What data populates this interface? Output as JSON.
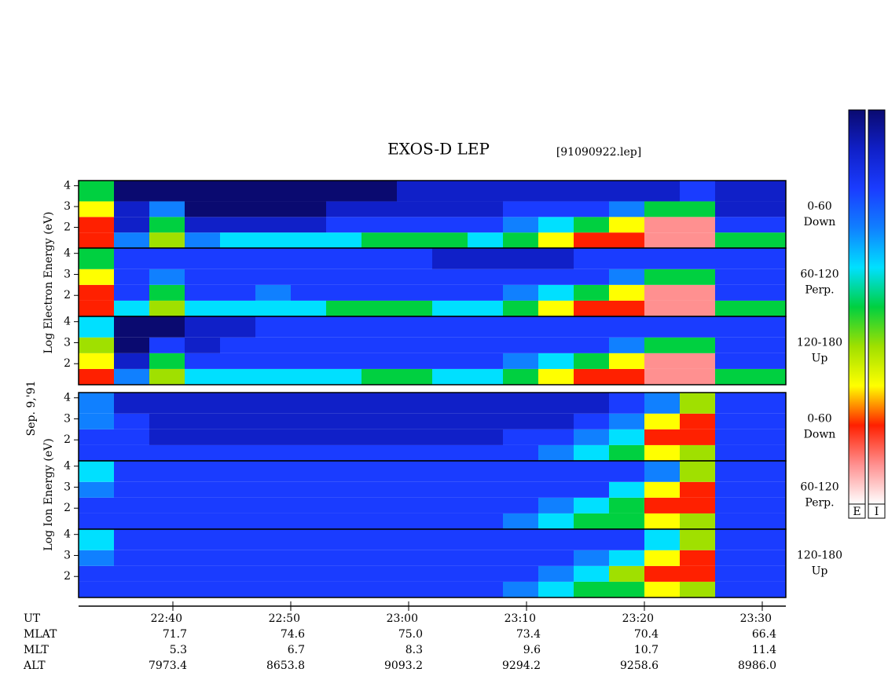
{
  "chart_data": {
    "type": "heatmap",
    "title": "EXOS-D LEP",
    "subtitle": "[91090922.lep]",
    "date_label": "Sep. 9,'91",
    "electron_axis_label": "Log Electron Energy (eV)",
    "ion_axis_label": "Log Ion Energy (eV)",
    "xlabel": "UT",
    "xlim": [
      "22:32",
      "23:32"
    ],
    "xticks": [
      "22:40",
      "22:50",
      "23:00",
      "23:10",
      "23:20",
      "23:30"
    ],
    "ylim": [
      1,
      4.25
    ],
    "yticks": [
      2,
      3,
      4
    ],
    "energy_bins": [
      1,
      1.75,
      2.5,
      3.25,
      4.25
    ],
    "time_bins": [
      "22:32",
      "22:35",
      "22:38",
      "22:41",
      "22:44",
      "22:47",
      "22:50",
      "22:53",
      "22:56",
      "22:59",
      "23:02",
      "23:05",
      "23:08",
      "23:11",
      "23:14",
      "23:17",
      "23:20",
      "23:23",
      "23:26",
      "23:29",
      "23:32"
    ],
    "zlim": [
      0,
      10
    ],
    "colors": [
      "#0a0a70",
      "#1020c8",
      "#1a3cff",
      "#1080ff",
      "#00e0ff",
      "#00d040",
      "#a0e000",
      "#ffff00",
      "#ff2000",
      "#ff9090",
      "#ffffff"
    ],
    "colorbar_labels": [
      "E",
      "I"
    ],
    "panels": [
      {
        "species": "electron",
        "label_lines": [
          "0-60",
          "Down"
        ],
        "values": [
          [
            8,
            8,
            7,
            5
          ],
          [
            3,
            1,
            1,
            0
          ],
          [
            6,
            5,
            3,
            0
          ],
          [
            3,
            1,
            0,
            0
          ],
          [
            4,
            1,
            0,
            0
          ],
          [
            4,
            1,
            0,
            0
          ],
          [
            4,
            1,
            0,
            0
          ],
          [
            4,
            2,
            1,
            0
          ],
          [
            5,
            2,
            1,
            0
          ],
          [
            5,
            2,
            1,
            1
          ],
          [
            5,
            2,
            1,
            1
          ],
          [
            4,
            2,
            1,
            1
          ],
          [
            5,
            3,
            2,
            1
          ],
          [
            7,
            4,
            2,
            1
          ],
          [
            8,
            5,
            2,
            1
          ],
          [
            8,
            7,
            3,
            1
          ],
          [
            9,
            9,
            5,
            1
          ],
          [
            9,
            9,
            5,
            2
          ],
          [
            5,
            2,
            1,
            1
          ],
          [
            5,
            2,
            1,
            1
          ]
        ]
      },
      {
        "species": "electron",
        "label_lines": [
          "60-120",
          "Perp."
        ],
        "values": [
          [
            8,
            8,
            7,
            5
          ],
          [
            4,
            2,
            2,
            2
          ],
          [
            6,
            5,
            3,
            2
          ],
          [
            4,
            2,
            2,
            2
          ],
          [
            4,
            2,
            2,
            2
          ],
          [
            4,
            3,
            2,
            2
          ],
          [
            4,
            2,
            2,
            2
          ],
          [
            5,
            2,
            2,
            2
          ],
          [
            5,
            2,
            2,
            2
          ],
          [
            5,
            2,
            2,
            2
          ],
          [
            4,
            2,
            2,
            1
          ],
          [
            4,
            2,
            2,
            1
          ],
          [
            5,
            3,
            2,
            1
          ],
          [
            7,
            4,
            2,
            1
          ],
          [
            8,
            5,
            2,
            2
          ],
          [
            8,
            7,
            3,
            2
          ],
          [
            9,
            9,
            5,
            2
          ],
          [
            9,
            9,
            5,
            2
          ],
          [
            5,
            2,
            2,
            2
          ],
          [
            5,
            2,
            2,
            2
          ]
        ]
      },
      {
        "species": "electron",
        "label_lines": [
          "120-180",
          "Up"
        ],
        "values": [
          [
            8,
            7,
            6,
            4
          ],
          [
            3,
            1,
            0,
            0
          ],
          [
            6,
            5,
            2,
            0
          ],
          [
            4,
            2,
            1,
            1
          ],
          [
            4,
            2,
            2,
            1
          ],
          [
            4,
            2,
            2,
            2
          ],
          [
            4,
            2,
            2,
            2
          ],
          [
            4,
            2,
            2,
            2
          ],
          [
            5,
            2,
            2,
            2
          ],
          [
            5,
            2,
            2,
            2
          ],
          [
            4,
            2,
            2,
            2
          ],
          [
            4,
            2,
            2,
            2
          ],
          [
            5,
            3,
            2,
            2
          ],
          [
            7,
            4,
            2,
            2
          ],
          [
            8,
            5,
            2,
            2
          ],
          [
            8,
            7,
            3,
            2
          ],
          [
            9,
            9,
            5,
            2
          ],
          [
            9,
            9,
            5,
            2
          ],
          [
            5,
            2,
            2,
            2
          ],
          [
            5,
            2,
            2,
            2
          ]
        ]
      },
      {
        "species": "ion",
        "label_lines": [
          "0-60",
          "Down"
        ],
        "values": [
          [
            2,
            2,
            3,
            3
          ],
          [
            2,
            2,
            2,
            1
          ],
          [
            2,
            1,
            1,
            1
          ],
          [
            2,
            1,
            1,
            1
          ],
          [
            2,
            1,
            1,
            1
          ],
          [
            2,
            1,
            1,
            1
          ],
          [
            2,
            1,
            1,
            1
          ],
          [
            2,
            1,
            1,
            1
          ],
          [
            2,
            1,
            1,
            1
          ],
          [
            2,
            1,
            1,
            1
          ],
          [
            2,
            1,
            1,
            1
          ],
          [
            2,
            1,
            1,
            1
          ],
          [
            2,
            2,
            1,
            1
          ],
          [
            3,
            2,
            1,
            1
          ],
          [
            4,
            3,
            2,
            1
          ],
          [
            5,
            4,
            3,
            2
          ],
          [
            7,
            8,
            7,
            3
          ],
          [
            6,
            8,
            8,
            6
          ],
          [
            2,
            2,
            2,
            2
          ],
          [
            2,
            2,
            2,
            2
          ]
        ]
      },
      {
        "species": "ion",
        "label_lines": [
          "60-120",
          "Perp."
        ],
        "values": [
          [
            2,
            2,
            3,
            4
          ],
          [
            2,
            2,
            2,
            2
          ],
          [
            2,
            2,
            2,
            2
          ],
          [
            2,
            2,
            2,
            2
          ],
          [
            2,
            2,
            2,
            2
          ],
          [
            2,
            2,
            2,
            2
          ],
          [
            2,
            2,
            2,
            2
          ],
          [
            2,
            2,
            2,
            2
          ],
          [
            2,
            2,
            2,
            2
          ],
          [
            2,
            2,
            2,
            2
          ],
          [
            2,
            2,
            2,
            2
          ],
          [
            2,
            2,
            2,
            2
          ],
          [
            3,
            2,
            2,
            2
          ],
          [
            4,
            3,
            2,
            2
          ],
          [
            5,
            4,
            2,
            2
          ],
          [
            5,
            5,
            4,
            2
          ],
          [
            7,
            8,
            7,
            3
          ],
          [
            6,
            8,
            8,
            6
          ],
          [
            2,
            2,
            2,
            2
          ],
          [
            2,
            2,
            2,
            2
          ]
        ]
      },
      {
        "species": "ion",
        "label_lines": [
          "120-180",
          "Up"
        ],
        "values": [
          [
            2,
            2,
            3,
            4
          ],
          [
            2,
            2,
            2,
            2
          ],
          [
            2,
            2,
            2,
            2
          ],
          [
            2,
            2,
            2,
            2
          ],
          [
            2,
            2,
            2,
            2
          ],
          [
            2,
            2,
            2,
            2
          ],
          [
            2,
            2,
            2,
            2
          ],
          [
            2,
            2,
            2,
            2
          ],
          [
            2,
            2,
            2,
            2
          ],
          [
            2,
            2,
            2,
            2
          ],
          [
            2,
            2,
            2,
            2
          ],
          [
            2,
            2,
            2,
            2
          ],
          [
            3,
            2,
            2,
            2
          ],
          [
            4,
            3,
            2,
            2
          ],
          [
            5,
            4,
            3,
            2
          ],
          [
            5,
            6,
            4,
            2
          ],
          [
            7,
            8,
            7,
            4
          ],
          [
            6,
            8,
            8,
            6
          ],
          [
            2,
            2,
            2,
            2
          ],
          [
            2,
            2,
            2,
            2
          ]
        ]
      }
    ],
    "ephemeris": [
      {
        "name": "MLAT",
        "values": [
          "71.7",
          "74.6",
          "75.0",
          "73.4",
          "70.4",
          "66.4"
        ]
      },
      {
        "name": "MLT",
        "values": [
          "5.3",
          "6.7",
          "8.3",
          "9.6",
          "10.7",
          "11.4"
        ]
      },
      {
        "name": "ALT",
        "values": [
          "7973.4",
          "8653.8",
          "9093.2",
          "9294.2",
          "9258.6",
          "8986.0"
        ]
      }
    ]
  }
}
